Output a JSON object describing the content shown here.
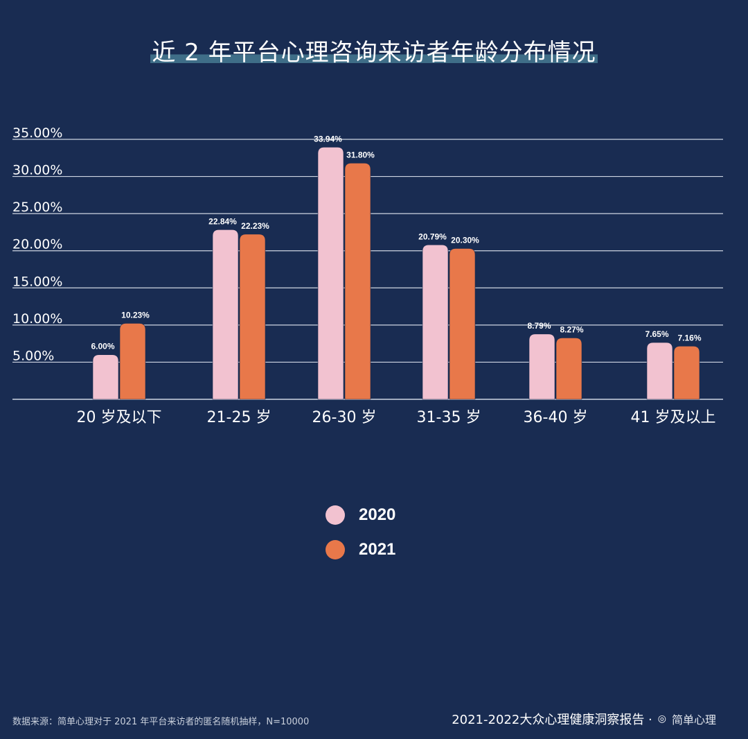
{
  "title": "近 2 年平台心理咨询来访者年龄分布情况",
  "chart_data": {
    "type": "bar",
    "categories": [
      "20 岁及以下",
      "21-25 岁",
      "26-30 岁",
      "31-35 岁",
      "36-40 岁",
      "41 岁及以上"
    ],
    "series": [
      {
        "name": "2020",
        "values": [
          6.0,
          22.84,
          33.94,
          20.79,
          8.79,
          7.65
        ],
        "labels": [
          "6.00%",
          "22.84%",
          "33.94%",
          "20.79%",
          "8.79%",
          "7.65%"
        ],
        "color": "#f2c2d0"
      },
      {
        "name": "2021",
        "values": [
          10.23,
          22.23,
          31.8,
          20.3,
          8.27,
          7.16
        ],
        "labels": [
          "10.23%",
          "22.23%",
          "31.80%",
          "20.30%",
          "8.27%",
          "7.16%"
        ],
        "color": "#e8784a"
      }
    ],
    "yticks": [
      "5.00%",
      "10.00%",
      "15.00%",
      "20.00%",
      "25.00%",
      "30.00%",
      "35.00%"
    ],
    "ylim": [
      0,
      35
    ],
    "grid": true,
    "legend_position": "bottom-center"
  },
  "source_note": "数据来源：简单心理对于 2021 年平台来访者的匿名随机抽样，N=10000",
  "footer": {
    "report": "2021-2022大众心理健康洞察报告 ·",
    "brand_icon": "brand-logo-icon",
    "brand": "简单心理"
  }
}
